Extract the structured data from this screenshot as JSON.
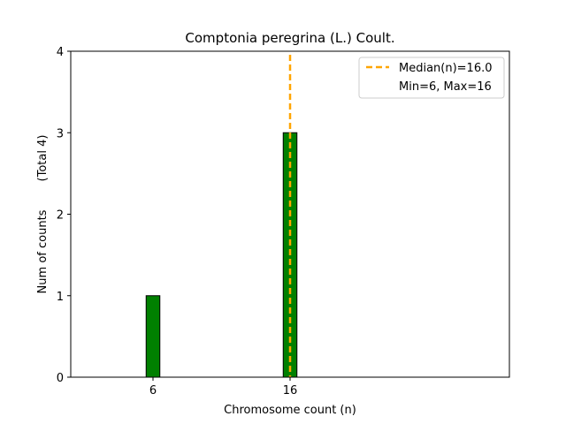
{
  "chart_data": {
    "type": "bar",
    "title": "Comptonia peregrina (L.) Coult.",
    "xlabel": "Chromosome count (n)",
    "ylabel": "Num of counts",
    "ylabel_note": "(Total 4)",
    "x": [
      6,
      16
    ],
    "values": [
      1,
      3
    ],
    "xticks": [
      6,
      16
    ],
    "yticks": [
      0,
      1,
      2,
      3,
      4
    ],
    "xlim": [
      0,
      32
    ],
    "ylim": [
      0,
      4
    ],
    "median": 16.0,
    "legend": {
      "placement": "top-right",
      "entries": [
        "Median(n)=16.0",
        "Min=6, Max=16"
      ]
    },
    "colors": {
      "bar": "#008000",
      "bar_edge": "#000000",
      "median_line": "#ffa500"
    },
    "grid": false
  }
}
